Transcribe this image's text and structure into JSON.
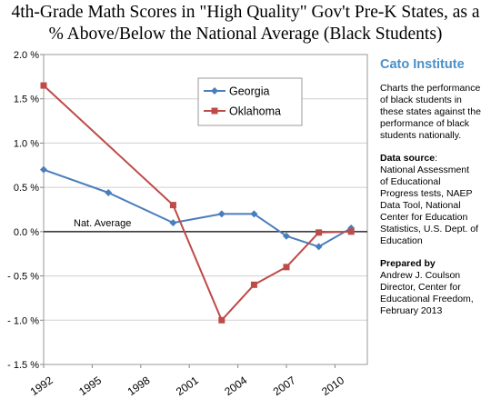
{
  "chart_data": {
    "type": "line",
    "title": "4th-Grade Math Scores in \"High Quality\" Gov't Pre-K States, as a % Above/Below the National Average (Black Students)",
    "title_lines": [
      "4th-Grade Math Scores in \"High Quality\" Gov't Pre-K States, as a",
      "% Above/Below the National Average (Black Students)"
    ],
    "xlabel": "",
    "ylabel": "",
    "xlim": [
      1992,
      2012
    ],
    "ylim": [
      -1.5,
      2.0
    ],
    "x_ticks": [
      1992,
      1995,
      1998,
      2001,
      2004,
      2007,
      2010
    ],
    "y_ticks": [
      {
        "value": 2.0,
        "label": "2.0 %"
      },
      {
        "value": 1.5,
        "label": "1.5 %"
      },
      {
        "value": 1.0,
        "label": "1.0 %"
      },
      {
        "value": 0.5,
        "label": "0.5 %"
      },
      {
        "value": 0.0,
        "label": "0.0 %"
      },
      {
        "value": -0.5,
        "label": "- 0.5 %"
      },
      {
        "value": -1.0,
        "label": "- 1.0 %"
      },
      {
        "value": -1.5,
        "label": "- 1.5 %"
      }
    ],
    "grid": "horizontal",
    "legend_position": "top-center",
    "baseline_label": "Nat. Average",
    "series": [
      {
        "name": "Georgia",
        "color": "#4a7ebb",
        "marker": "diamond",
        "points": [
          [
            1992,
            0.7
          ],
          [
            1996,
            0.44
          ],
          [
            2000,
            0.1
          ],
          [
            2003,
            0.2
          ],
          [
            2005,
            0.2
          ],
          [
            2007,
            -0.05
          ],
          [
            2009,
            -0.17
          ],
          [
            2011,
            0.04
          ]
        ]
      },
      {
        "name": "Oklahoma",
        "color": "#be4b48",
        "marker": "square",
        "points": [
          [
            1992,
            1.65
          ],
          [
            2000,
            0.3
          ],
          [
            2003,
            -1.0
          ],
          [
            2005,
            -0.6
          ],
          [
            2007,
            -0.4
          ],
          [
            2009,
            -0.01
          ],
          [
            2011,
            0.0
          ]
        ]
      }
    ]
  },
  "side_panel": {
    "org": "Cato Institute",
    "description_lines": [
      "Charts the performance",
      "of black students in",
      "these states against the",
      "performance of black",
      "students nationally."
    ],
    "source_heading": "Data source",
    "source_colon": ":",
    "source_lines": [
      "National Assessment",
      "of Educational",
      "Progress tests, NAEP",
      "Data Tool,  National",
      "Center for Education",
      "Statistics, U.S. Dept. of",
      "Education"
    ],
    "prepared_heading": "Prepared by",
    "prepared_lines": [
      "Andrew J. Coulson",
      "Director, Center for",
      "Educational Freedom,",
      "February 2013"
    ]
  }
}
